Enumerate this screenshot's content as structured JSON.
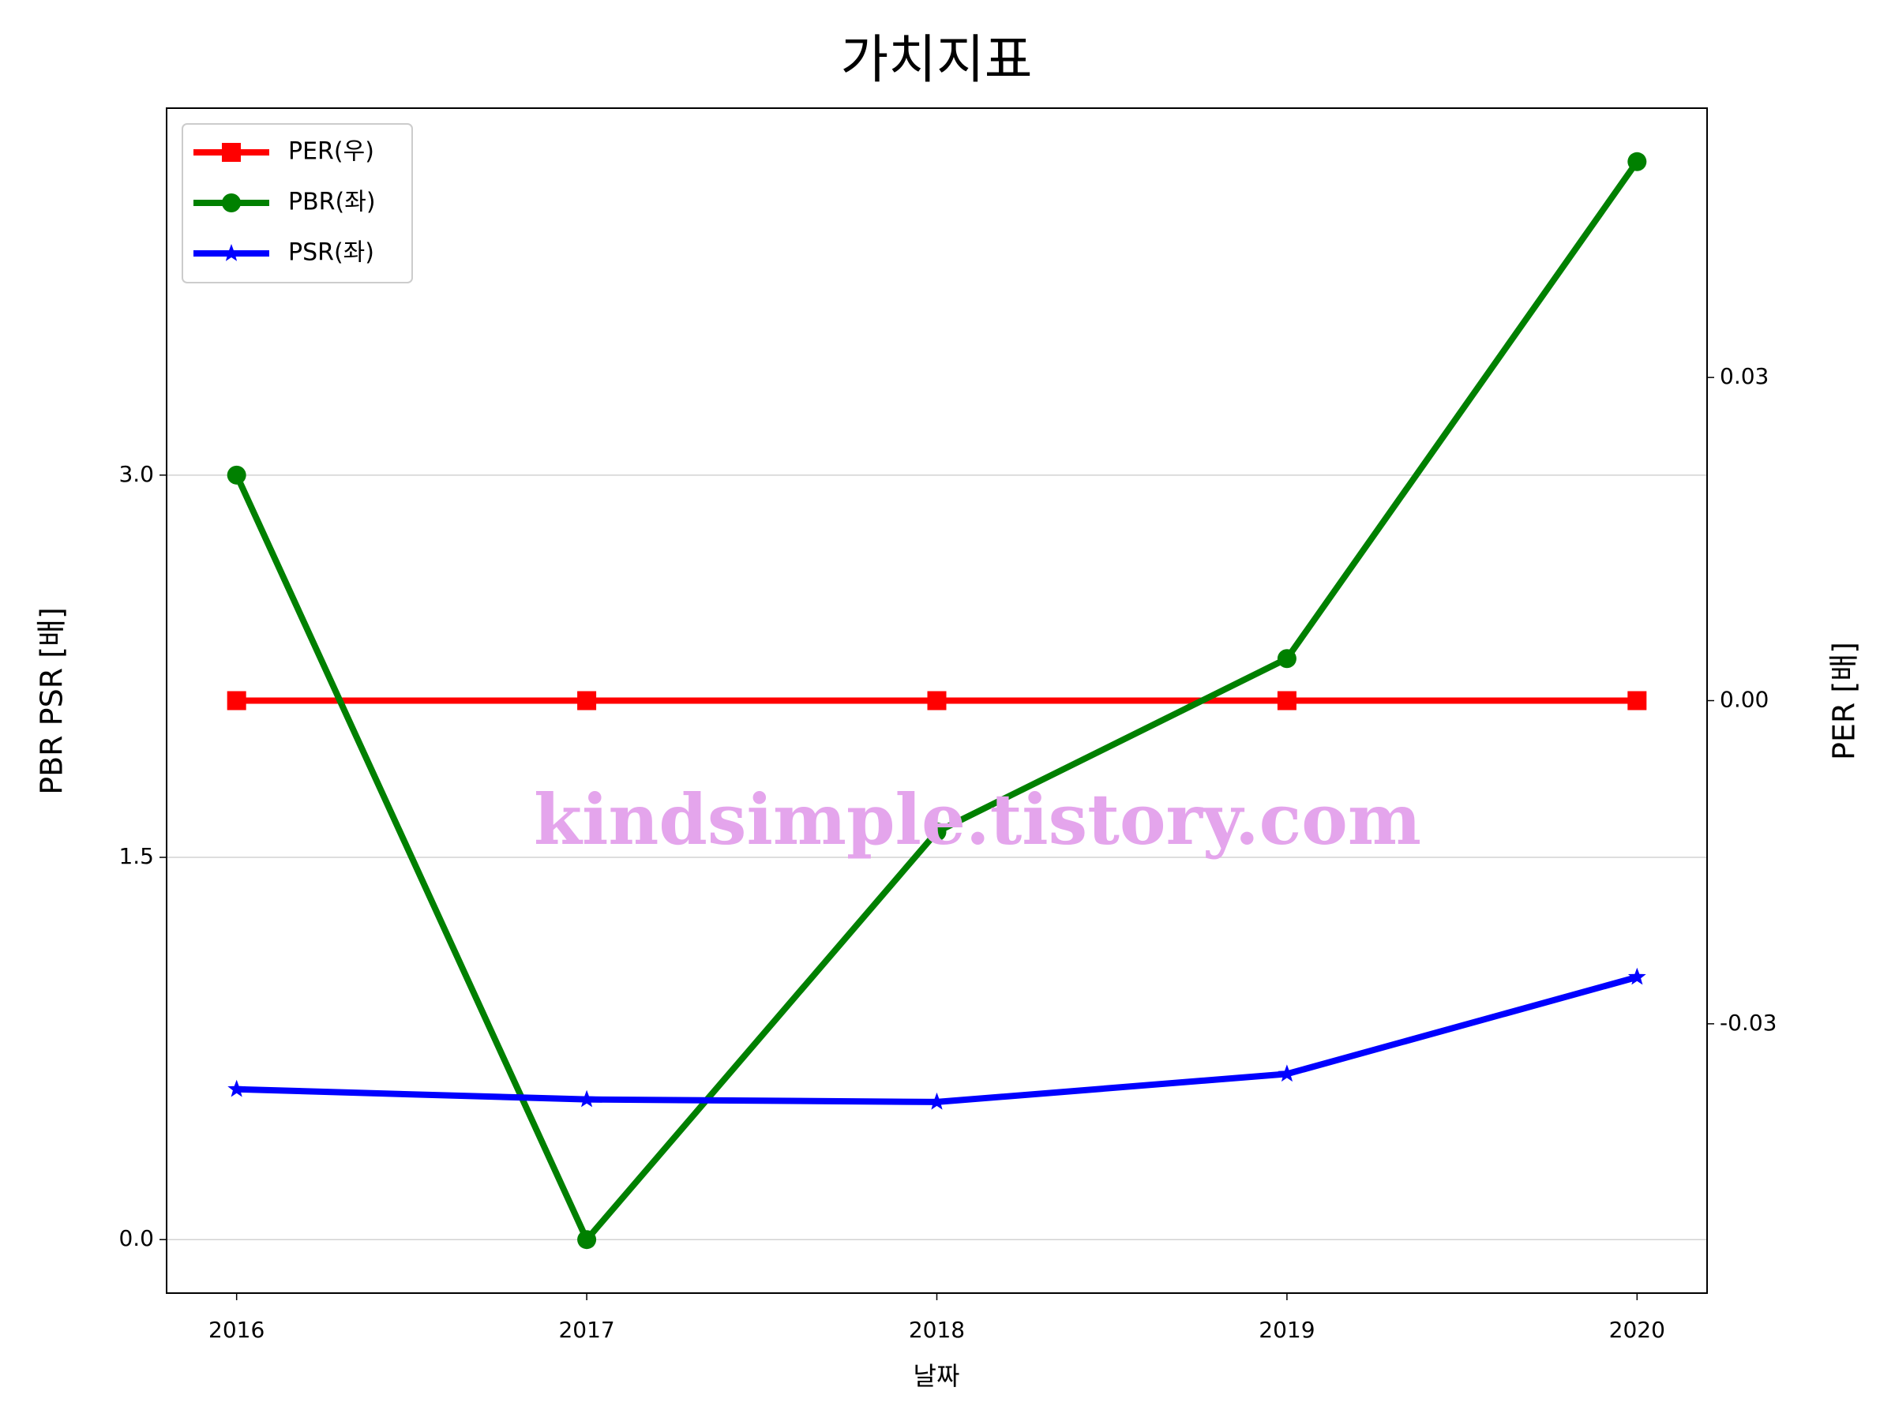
{
  "chart_data": {
    "type": "line",
    "title": "가치지표",
    "xlabel": "날짜",
    "ylabel": "PBR PSR [배]",
    "ylabel_color": "#008000",
    "y2label": "PER [배]",
    "y2label_color": "#ff0000",
    "x": [
      2016,
      2017,
      2018,
      2019,
      2020
    ],
    "xlim": [
      2015.8,
      2020.2
    ],
    "xticks": [
      2016,
      2017,
      2018,
      2019,
      2020
    ],
    "ylim": [
      -0.21,
      4.44
    ],
    "yticks": [
      {
        "value": 0,
        "label": "0.0"
      },
      1.5,
      {
        "value": 3,
        "label": "3.0"
      }
    ],
    "y2lim": [
      -0.055,
      0.055
    ],
    "y2ticks": [
      -0.03,
      {
        "value": 0,
        "label": "0.00"
      },
      0.03
    ],
    "grid": true,
    "legend": "upper left",
    "annotation": "kindsimple.tistory.com",
    "annotation_color": "#e4a5ec",
    "series": [
      {
        "name": "PER(우)",
        "color": "#ff0000",
        "marker": "square",
        "axis": "y2",
        "values": [
          0,
          0,
          0,
          0,
          0
        ]
      },
      {
        "name": "PBR(좌)",
        "color": "#008000",
        "marker": "circle",
        "values": [
          3.0,
          0.0,
          1.6,
          2.28,
          4.23
        ]
      },
      {
        "name": "PSR(좌)",
        "color": "#0000ff",
        "marker": "star",
        "values": [
          0.59,
          0.55,
          0.54,
          0.65,
          1.03
        ]
      }
    ]
  }
}
